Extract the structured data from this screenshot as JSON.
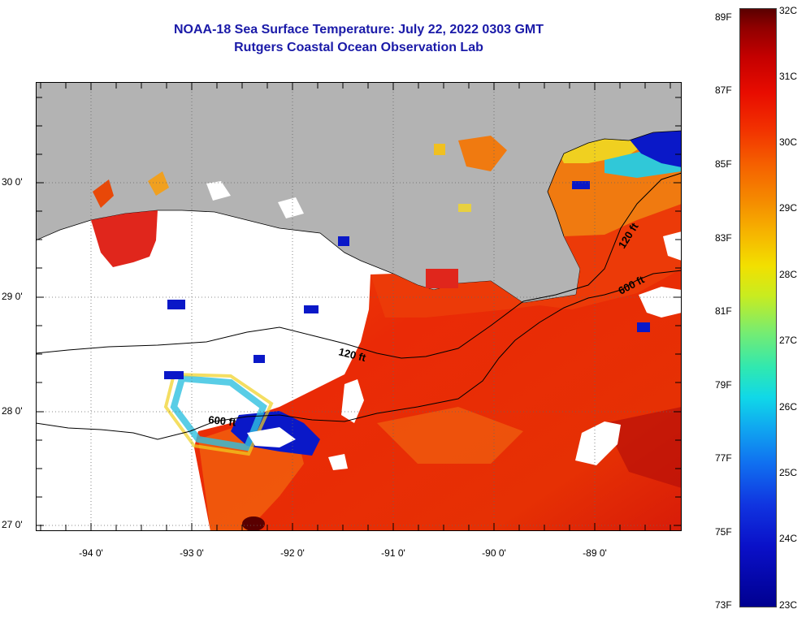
{
  "title": {
    "line1": "NOAA-18 Sea Surface Temperature:  July 22, 2022 0303 GMT",
    "line2": "Rutgers Coastal Ocean Observation Lab"
  },
  "map": {
    "lat_labels": [
      "30 0'",
      "29 0'",
      "28 0'",
      "27 0'"
    ],
    "lon_labels": [
      "-94 0'",
      "-93 0'",
      "-92 0'",
      "-91 0'",
      "-90 0'",
      "-89 0'"
    ],
    "contour_labels": [
      "120 ft",
      "600 ft",
      "120 ft",
      "600 ft"
    ],
    "colors": {
      "land": "#b3b3b3",
      "no_data": "#ffffff",
      "warm_water": "#ee3a08",
      "cool_water": "#0a18c8"
    }
  },
  "colorbar": {
    "fahrenheit_labels": [
      "89F",
      "87F",
      "85F",
      "83F",
      "81F",
      "79F",
      "77F",
      "75F",
      "73F"
    ],
    "celsius_labels": [
      "32C",
      "31C",
      "30C",
      "29C",
      "28C",
      "27C",
      "26C",
      "25C",
      "24C",
      "23C"
    ]
  }
}
